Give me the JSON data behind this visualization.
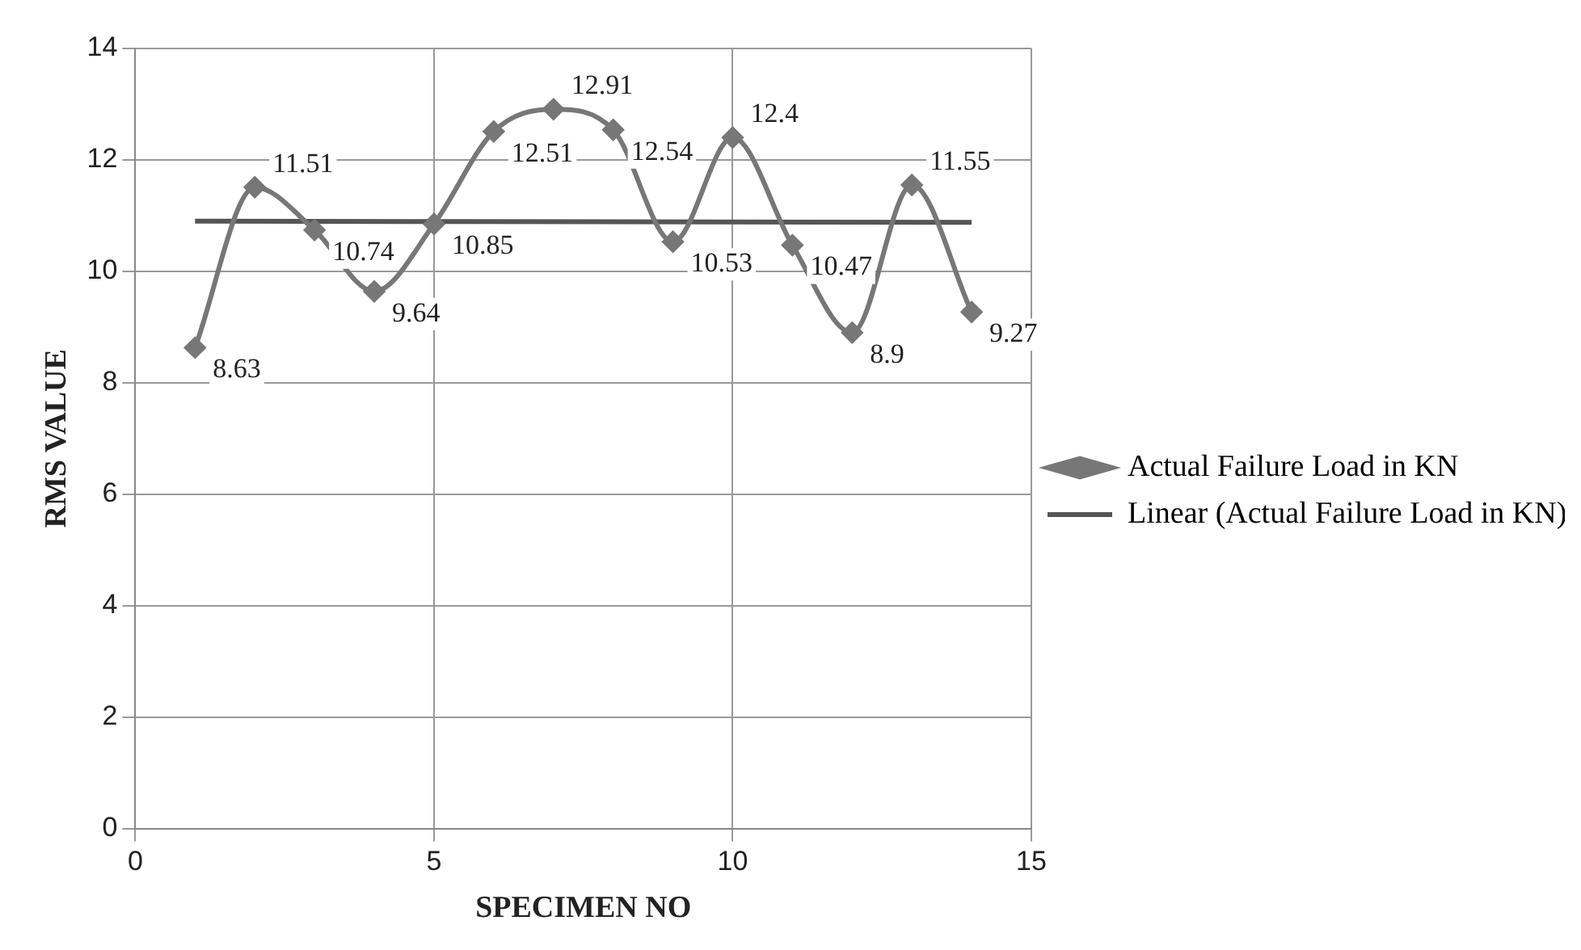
{
  "chart_data": {
    "type": "line",
    "xlabel": "SPECIMEN NO",
    "ylabel": "RMS VALUE",
    "xlim": [
      0,
      15
    ],
    "xticks": [
      0,
      5,
      10,
      15
    ],
    "ylim": [
      0,
      14
    ],
    "yticks": [
      0,
      2,
      4,
      6,
      8,
      10,
      12,
      14
    ],
    "grid": true,
    "legend": "right",
    "marker": "diamond",
    "series": [
      {
        "name": "Actual Failure Load in KN",
        "color": "#777777",
        "x": [
          1,
          2,
          3,
          4,
          5,
          6,
          7,
          8,
          9,
          10,
          11,
          12,
          13,
          14
        ],
        "values": [
          8.63,
          11.51,
          10.74,
          9.64,
          10.85,
          12.51,
          12.91,
          12.54,
          10.53,
          12.4,
          10.47,
          8.9,
          11.55,
          9.27
        ],
        "value_labels": [
          "8.63",
          "11.51",
          "10.74",
          "9.64",
          "10.85",
          "12.51",
          "12.91",
          "12.54",
          "10.53",
          "12.4",
          "10.47",
          "8.9",
          "11.55",
          "9.27"
        ]
      },
      {
        "name": "Linear (Actual Failure Load in KN)",
        "color": "#555555",
        "type": "line",
        "marker": "none",
        "x": [
          1,
          14
        ],
        "values": [
          10.9,
          10.88
        ]
      }
    ]
  }
}
